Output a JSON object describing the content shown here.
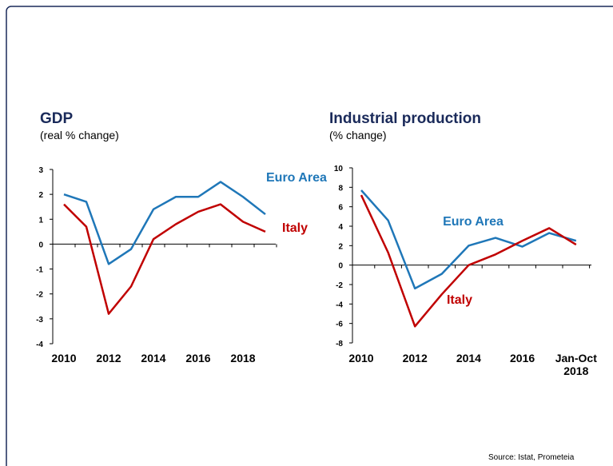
{
  "source": "Source: Istat, Prometeia",
  "chart_data": [
    {
      "type": "line",
      "title": "GDP",
      "subtitle": "(real % change)",
      "categories": [
        "2010",
        null,
        "2012",
        null,
        "2014",
        null,
        "2016",
        null,
        "2018",
        null
      ],
      "ylim": [
        -4,
        3
      ],
      "yticks": [
        -4,
        -3,
        -2,
        -1,
        0,
        1,
        2,
        3
      ],
      "series": [
        {
          "name": "Euro Area",
          "color": "#1f77b8",
          "values": [
            2.0,
            1.7,
            -0.8,
            -0.2,
            1.4,
            1.9,
            1.9,
            2.5,
            1.9,
            1.2
          ]
        },
        {
          "name": "Italy",
          "color": "#c00000",
          "values": [
            1.6,
            0.7,
            -2.8,
            -1.7,
            0.2,
            0.8,
            1.3,
            1.6,
            0.9,
            0.5
          ]
        }
      ]
    },
    {
      "type": "line",
      "title": "Industrial production",
      "subtitle": "(% change)",
      "categories": [
        "2010",
        null,
        "2012",
        null,
        "2014",
        null,
        "2016",
        null,
        "Jan-Oct 2018"
      ],
      "ylim": [
        -8,
        10
      ],
      "yticks": [
        -8,
        -6,
        -4,
        -2,
        0,
        2,
        4,
        6,
        8,
        10
      ],
      "series": [
        {
          "name": "Euro Area",
          "color": "#1f77b8",
          "values": [
            7.7,
            4.6,
            -2.4,
            -0.9,
            2.0,
            2.8,
            1.9,
            3.3,
            2.5
          ]
        },
        {
          "name": "Italy",
          "color": "#c00000",
          "values": [
            7.2,
            1.3,
            -6.3,
            -3.0,
            0.0,
            1.1,
            2.5,
            3.8,
            2.1
          ]
        }
      ]
    }
  ]
}
